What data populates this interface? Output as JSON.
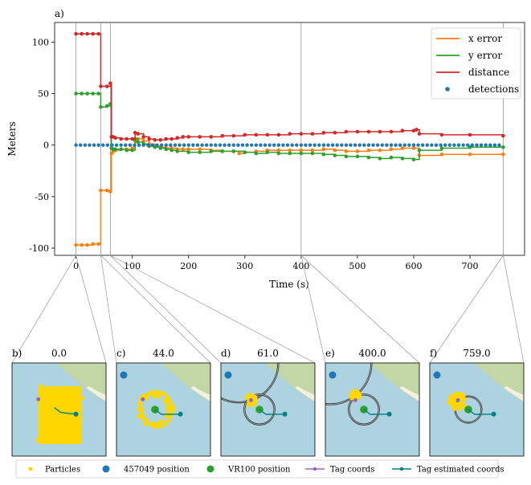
{
  "chart_data": [
    {
      "type": "line",
      "panel_label": "a)",
      "xlabel": "Time (s)",
      "ylabel": "Meters",
      "xlim": [
        -38,
        797
      ],
      "ylim": [
        -107,
        119
      ],
      "xticks": [
        0,
        100,
        200,
        300,
        400,
        500,
        600,
        700
      ],
      "yticks": [
        -100,
        -50,
        0,
        50,
        100
      ],
      "vlines": [
        0,
        44,
        61,
        400,
        759
      ],
      "legend": {
        "location": "top-right"
      },
      "series": [
        {
          "name": "x error",
          "color": "#ff7f0e",
          "kind": "step",
          "points": [
            [
              0,
              -97
            ],
            [
              10,
              -97
            ],
            [
              20,
              -97
            ],
            [
              30,
              -96
            ],
            [
              40,
              -96
            ],
            [
              44,
              -44
            ],
            [
              55,
              -44
            ],
            [
              61,
              -45
            ],
            [
              63,
              -8
            ],
            [
              66,
              -6
            ],
            [
              70,
              -5
            ],
            [
              80,
              -4
            ],
            [
              90,
              -4
            ],
            [
              100,
              -3
            ],
            [
              105,
              4
            ],
            [
              110,
              6
            ],
            [
              120,
              4
            ],
            [
              130,
              1
            ],
            [
              140,
              -1
            ],
            [
              150,
              -2
            ],
            [
              160,
              -3
            ],
            [
              170,
              -3
            ],
            [
              180,
              -4
            ],
            [
              190,
              -4
            ],
            [
              200,
              -4
            ],
            [
              220,
              -4
            ],
            [
              240,
              -5
            ],
            [
              260,
              -6
            ],
            [
              280,
              -6
            ],
            [
              290,
              -8
            ],
            [
              300,
              -7
            ],
            [
              320,
              -6
            ],
            [
              340,
              -5
            ],
            [
              360,
              -5
            ],
            [
              380,
              -5
            ],
            [
              400,
              -5
            ],
            [
              420,
              -5
            ],
            [
              440,
              -4
            ],
            [
              460,
              -5
            ],
            [
              480,
              -6
            ],
            [
              500,
              -6
            ],
            [
              520,
              -5
            ],
            [
              540,
              -5
            ],
            [
              560,
              -4
            ],
            [
              580,
              -3
            ],
            [
              600,
              -3
            ],
            [
              610,
              -10
            ],
            [
              650,
              -9
            ],
            [
              700,
              -9
            ],
            [
              759,
              -9
            ]
          ]
        },
        {
          "name": "y error",
          "color": "#2ca02c",
          "kind": "step",
          "points": [
            [
              0,
              50
            ],
            [
              10,
              50
            ],
            [
              20,
              50
            ],
            [
              30,
              50
            ],
            [
              40,
              50
            ],
            [
              44,
              37
            ],
            [
              55,
              38
            ],
            [
              61,
              40
            ],
            [
              63,
              -3
            ],
            [
              66,
              -4
            ],
            [
              70,
              -4
            ],
            [
              80,
              -4
            ],
            [
              90,
              -5
            ],
            [
              100,
              -5
            ],
            [
              105,
              6
            ],
            [
              110,
              3
            ],
            [
              120,
              1
            ],
            [
              130,
              -1
            ],
            [
              140,
              -2
            ],
            [
              150,
              -3
            ],
            [
              160,
              -4
            ],
            [
              170,
              -5
            ],
            [
              180,
              -6
            ],
            [
              200,
              -7
            ],
            [
              220,
              -7
            ],
            [
              240,
              -6
            ],
            [
              260,
              -6
            ],
            [
              280,
              -6
            ],
            [
              300,
              -7
            ],
            [
              320,
              -8
            ],
            [
              340,
              -7
            ],
            [
              360,
              -8
            ],
            [
              380,
              -8
            ],
            [
              400,
              -8
            ],
            [
              420,
              -8
            ],
            [
              440,
              -9
            ],
            [
              460,
              -10
            ],
            [
              480,
              -11
            ],
            [
              500,
              -11
            ],
            [
              520,
              -12
            ],
            [
              540,
              -13
            ],
            [
              560,
              -12
            ],
            [
              580,
              -13
            ],
            [
              600,
              -14
            ],
            [
              610,
              -5
            ],
            [
              650,
              -3
            ],
            [
              700,
              -2
            ],
            [
              759,
              -2
            ]
          ]
        },
        {
          "name": "distance",
          "color": "#d62728",
          "kind": "step",
          "points": [
            [
              0,
              108
            ],
            [
              10,
              108
            ],
            [
              20,
              108
            ],
            [
              30,
              108
            ],
            [
              40,
              108
            ],
            [
              44,
              57
            ],
            [
              55,
              57
            ],
            [
              61,
              60
            ],
            [
              63,
              8
            ],
            [
              66,
              8
            ],
            [
              70,
              7
            ],
            [
              80,
              6
            ],
            [
              90,
              6
            ],
            [
              100,
              6
            ],
            [
              105,
              12
            ],
            [
              110,
              11
            ],
            [
              120,
              8
            ],
            [
              130,
              6
            ],
            [
              140,
              5
            ],
            [
              150,
              5
            ],
            [
              160,
              6
            ],
            [
              170,
              6
            ],
            [
              180,
              7
            ],
            [
              190,
              8
            ],
            [
              200,
              8
            ],
            [
              220,
              8
            ],
            [
              240,
              8
            ],
            [
              260,
              9
            ],
            [
              280,
              9
            ],
            [
              300,
              10
            ],
            [
              320,
              10
            ],
            [
              340,
              10
            ],
            [
              360,
              10
            ],
            [
              380,
              11
            ],
            [
              400,
              11
            ],
            [
              420,
              11
            ],
            [
              440,
              12
            ],
            [
              460,
              12
            ],
            [
              480,
              13
            ],
            [
              500,
              13
            ],
            [
              520,
              13
            ],
            [
              540,
              13
            ],
            [
              560,
              13
            ],
            [
              580,
              14
            ],
            [
              600,
              14
            ],
            [
              605,
              15
            ],
            [
              610,
              11
            ],
            [
              650,
              10
            ],
            [
              700,
              10
            ],
            [
              759,
              9
            ]
          ]
        },
        {
          "name": "detections",
          "color": "#1f77b4",
          "kind": "scatter",
          "value": 0,
          "x_range": [
            0,
            759
          ],
          "spacing": 8
        }
      ]
    },
    {
      "type": "scatter",
      "subplots": [
        {
          "label": "b)",
          "title": "0.0",
          "has_blue": false,
          "particles": "square",
          "px": 0.5,
          "py": 0.45,
          "spread": 0.33,
          "vr": null,
          "circles": [],
          "tag": [
            0.28,
            0.39
          ],
          "tag_est": [
            0.55,
            0.52
          ]
        },
        {
          "label": "c)",
          "title": "44.0",
          "has_blue": true,
          "particles": "ring",
          "px": 0.41,
          "py": 0.5,
          "spread": 0.17,
          "vr": [
            0.41,
            0.5
          ],
          "circles": [],
          "tag": [
            0.28,
            0.39
          ],
          "tag_est": [
            0.58,
            0.57
          ]
        },
        {
          "label": "d)",
          "title": "61.0",
          "has_blue": true,
          "particles": "blob",
          "px": 0.32,
          "py": 0.4,
          "spread": 0.06,
          "vr": [
            0.41,
            0.5
          ],
          "circles": [
            [
              0.19,
              0.0,
              0.42
            ],
            [
              0.41,
              0.5,
              0.16
            ]
          ],
          "tag": [
            0.32,
            0.4
          ],
          "tag_est": [
            0.58,
            0.57
          ]
        },
        {
          "label": "e)",
          "title": "400.0",
          "has_blue": true,
          "particles": "blob",
          "px": 0.32,
          "py": 0.35,
          "spread": 0.05,
          "vr": [
            0.41,
            0.5
          ],
          "circles": [
            [
              0.05,
              0.0,
              0.44
            ],
            [
              0.41,
              0.5,
              0.16
            ]
          ],
          "tag": [
            0.32,
            0.4
          ],
          "tag_est": [
            0.58,
            0.57
          ]
        },
        {
          "label": "f)",
          "title": "759.0",
          "has_blue": true,
          "particles": "blob",
          "px": 0.3,
          "py": 0.42,
          "spread": 0.1,
          "vr": [
            0.41,
            0.5
          ],
          "circles": [
            [
              0.41,
              0.5,
              0.14
            ]
          ],
          "tag": [
            0.3,
            0.4
          ],
          "tag_est": [
            0.58,
            0.57
          ]
        }
      ],
      "legend": [
        {
          "name": "Particles",
          "color": "#ffd700",
          "marker": "dot"
        },
        {
          "name": "457049 position",
          "color": "#1f77b4",
          "marker": "bigdot"
        },
        {
          "name": "VR100 position",
          "color": "#2ca02c",
          "marker": "bigdot"
        },
        {
          "name": "Tag coords",
          "color": "#9467bd",
          "marker": "line"
        },
        {
          "name": "Tag estimated coords",
          "color": "#008080",
          "marker": "line"
        }
      ]
    }
  ]
}
